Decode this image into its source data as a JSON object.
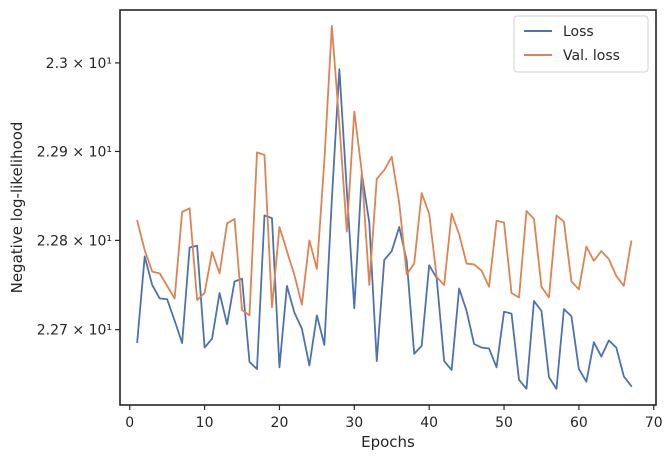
{
  "chart_data": {
    "type": "line",
    "xlabel": "Epochs",
    "ylabel": "Negative log-likelihood",
    "xlim": [
      -1.3,
      70.3
    ],
    "ylim": [
      22.616,
      23.06
    ],
    "yscale": "log",
    "xticks": [
      0,
      10,
      20,
      30,
      40,
      50,
      60,
      70
    ],
    "yticks": [
      {
        "value": 22.7,
        "label": "2.27 × 10¹"
      },
      {
        "value": 22.8,
        "label": "2.28 × 10¹"
      },
      {
        "value": 22.9,
        "label": "2.29 × 10¹"
      },
      {
        "value": 23.0,
        "label": "2.3 × 10¹"
      }
    ],
    "legend_position": "top-right",
    "x": [
      1,
      2,
      3,
      4,
      5,
      6,
      7,
      8,
      9,
      10,
      11,
      12,
      13,
      14,
      15,
      16,
      17,
      18,
      19,
      20,
      21,
      22,
      23,
      24,
      25,
      26,
      27,
      28,
      29,
      30,
      31,
      32,
      33,
      34,
      35,
      36,
      37,
      38,
      39,
      40,
      41,
      42,
      43,
      44,
      45,
      46,
      47,
      48,
      49,
      50,
      51,
      52,
      53,
      54,
      55,
      56,
      57,
      58,
      59,
      60,
      61,
      62,
      63,
      64,
      65,
      66,
      67
    ],
    "series": [
      {
        "name": "Loss",
        "color": "#4c72b0",
        "values": [
          22.686,
          22.782,
          22.75,
          22.735,
          22.734,
          22.71,
          22.685,
          22.792,
          22.794,
          22.68,
          22.69,
          22.741,
          22.706,
          22.754,
          22.757,
          22.664,
          22.656,
          22.828,
          22.825,
          22.658,
          22.749,
          22.719,
          22.701,
          22.66,
          22.716,
          22.683,
          22.846,
          22.993,
          22.856,
          22.724,
          22.875,
          22.82,
          22.665,
          22.778,
          22.788,
          22.815,
          22.777,
          22.673,
          22.682,
          22.772,
          22.758,
          22.665,
          22.655,
          22.746,
          22.721,
          22.684,
          22.68,
          22.679,
          22.658,
          22.72,
          22.718,
          22.644,
          22.634,
          22.732,
          22.721,
          22.647,
          22.634,
          22.723,
          22.715,
          22.656,
          22.642,
          22.686,
          22.67,
          22.688,
          22.68,
          22.648,
          22.637
        ]
      },
      {
        "name": "Val. loss",
        "color": "#dd8452",
        "values": [
          22.822,
          22.789,
          22.765,
          22.763,
          22.749,
          22.735,
          22.832,
          22.836,
          22.733,
          22.741,
          22.787,
          22.763,
          22.819,
          22.824,
          22.722,
          22.716,
          22.899,
          22.896,
          22.725,
          22.815,
          22.788,
          22.761,
          22.728,
          22.8,
          22.768,
          22.89,
          23.042,
          22.931,
          22.81,
          22.945,
          22.877,
          22.75,
          22.869,
          22.879,
          22.894,
          22.842,
          22.762,
          22.774,
          22.853,
          22.83,
          22.759,
          22.75,
          22.83,
          22.807,
          22.774,
          22.773,
          22.766,
          22.748,
          22.822,
          22.82,
          22.741,
          22.736,
          22.833,
          22.824,
          22.748,
          22.736,
          22.828,
          22.821,
          22.754,
          22.745,
          22.793,
          22.777,
          22.788,
          22.779,
          22.76,
          22.749,
          22.799
        ]
      }
    ]
  }
}
